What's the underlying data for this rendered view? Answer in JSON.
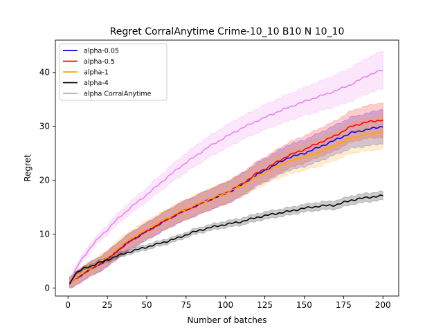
{
  "chart_data": {
    "type": "line",
    "title": "Regret CorralAnytime Crime-10_10 B10 N 10_10",
    "xlabel": "Number of batches",
    "ylabel": "Regret",
    "xlim": [
      -8,
      210
    ],
    "ylim": [
      -1.5,
      46
    ],
    "xticks": [
      0,
      25,
      50,
      75,
      100,
      125,
      150,
      175,
      200
    ],
    "yticks": [
      0,
      10,
      20,
      30,
      40
    ],
    "legend_position": "upper-left",
    "x": [
      1,
      5,
      10,
      15,
      20,
      25,
      30,
      40,
      50,
      60,
      70,
      80,
      90,
      100,
      110,
      120,
      130,
      140,
      150,
      160,
      170,
      180,
      190,
      200
    ],
    "series": [
      {
        "name": "alpha-0.05",
        "color": "#0000ff",
        "values": [
          0.8,
          1.8,
          2.7,
          3.6,
          4.4,
          5.3,
          6.6,
          8.8,
          10.5,
          12.2,
          13.8,
          15.1,
          16.4,
          17.5,
          19.0,
          21.0,
          22.6,
          24.2,
          25.0,
          26.2,
          27.5,
          28.8,
          29.4,
          30.0
        ],
        "band": [
          1.2,
          1.4,
          1.6,
          1.8,
          2.0,
          2.2,
          2.5,
          2.8,
          3.2
        ]
      },
      {
        "name": "alpha-0.5",
        "color": "#ff0000",
        "values": [
          0.8,
          1.8,
          2.7,
          3.6,
          4.4,
          5.3,
          6.6,
          8.8,
          10.5,
          12.2,
          13.8,
          15.1,
          16.4,
          17.6,
          19.2,
          21.3,
          22.9,
          24.6,
          25.7,
          27.0,
          28.3,
          30.0,
          30.8,
          31.2
        ],
        "band": [
          1.2,
          1.4,
          1.6,
          1.8,
          2.0,
          2.2,
          2.5,
          2.8,
          3.2
        ]
      },
      {
        "name": "alpha-1",
        "color": "#ffa500",
        "values": [
          0.8,
          1.9,
          2.9,
          3.8,
          4.7,
          5.6,
          7.0,
          9.2,
          10.9,
          12.5,
          14.0,
          15.3,
          16.5,
          17.6,
          18.9,
          20.7,
          22.2,
          23.5,
          24.3,
          25.3,
          26.5,
          27.9,
          28.5,
          29.0
        ],
        "band": [
          1.2,
          1.4,
          1.6,
          1.8,
          2.0,
          2.2,
          2.5,
          2.8,
          3.2
        ]
      },
      {
        "name": "alpha-4",
        "color": "#000000",
        "values": [
          0.8,
          2.7,
          3.6,
          4.1,
          4.7,
          5.2,
          5.8,
          6.8,
          7.6,
          8.4,
          9.3,
          10.4,
          11.2,
          11.8,
          12.3,
          13.1,
          13.7,
          14.2,
          14.8,
          15.2,
          15.4,
          16.3,
          16.8,
          17.1
        ],
        "band": [
          0.3,
          0.4,
          0.5,
          0.5,
          0.6,
          0.7,
          0.7,
          0.8,
          0.8
        ]
      },
      {
        "name": "alpha CorralAnytime",
        "color": "#ee82ee",
        "values": [
          0.8,
          3.6,
          5.8,
          7.8,
          9.4,
          10.8,
          12.4,
          15.0,
          17.3,
          19.8,
          22.2,
          24.3,
          26.3,
          28.0,
          29.6,
          31.0,
          32.3,
          33.5,
          34.6,
          35.6,
          36.6,
          37.8,
          39.4,
          40.5
        ],
        "band": [
          0.5,
          0.9,
          1.3,
          1.8,
          2.1,
          2.3,
          2.6,
          3.0,
          3.5
        ]
      }
    ]
  }
}
